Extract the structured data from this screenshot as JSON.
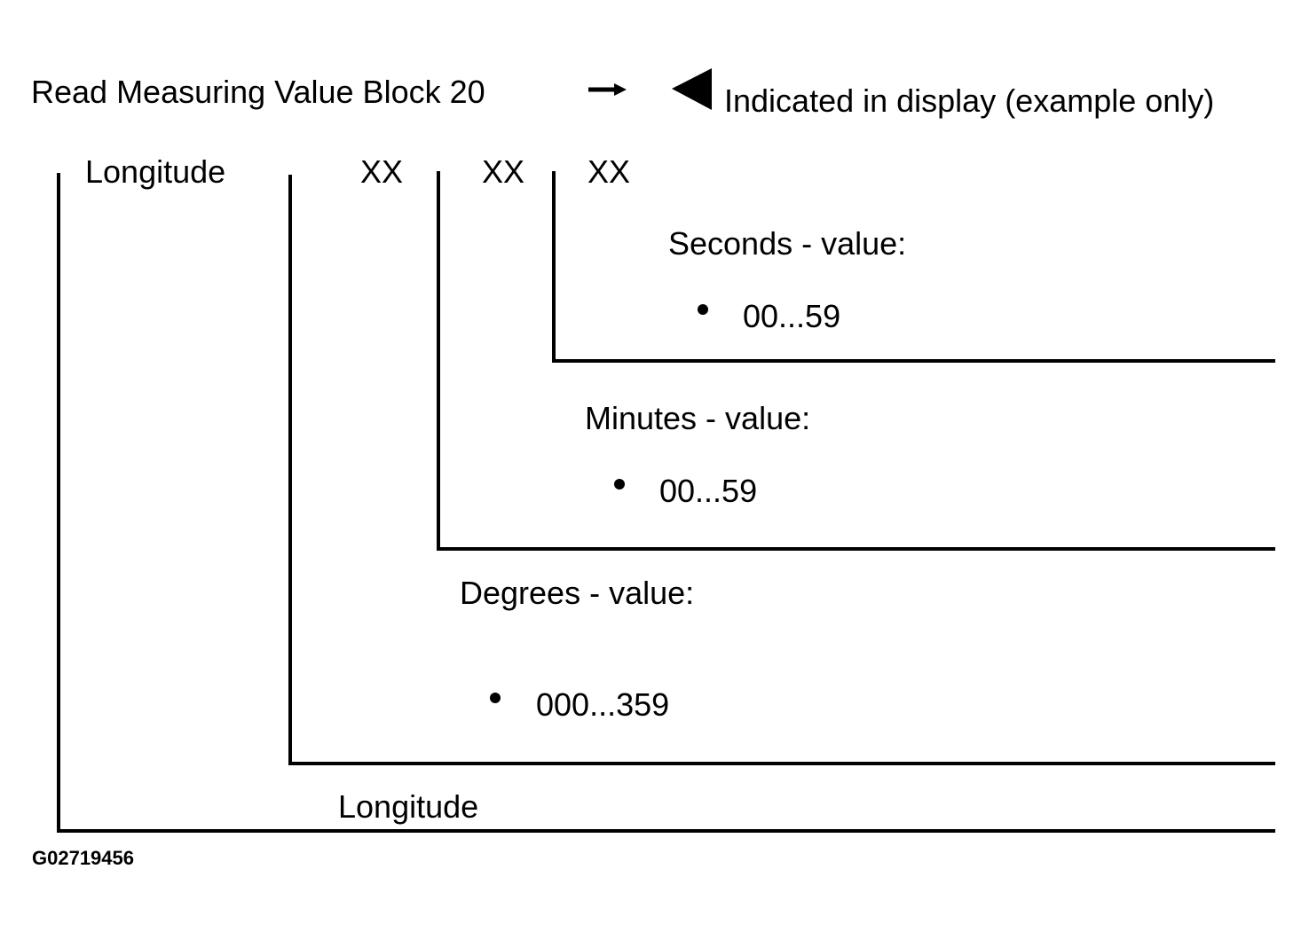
{
  "header": {
    "title": "Read Measuring Value Block 20",
    "note": "Indicated in display (example only)"
  },
  "display": {
    "label": "Longitude",
    "fields": [
      "XX",
      "XX",
      "XX"
    ]
  },
  "sections": [
    {
      "label": "Seconds - value:",
      "range": "00...59"
    },
    {
      "label": "Minutes - value:",
      "range": "00...59"
    },
    {
      "label": "Degrees - value:",
      "range": "000...359"
    }
  ],
  "footer_label": "Longitude",
  "figure_id": "G02719456"
}
